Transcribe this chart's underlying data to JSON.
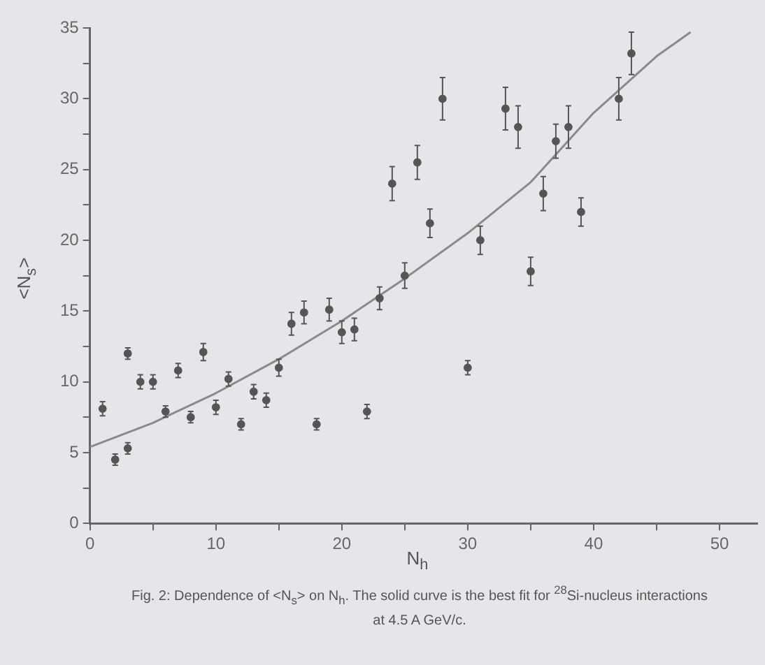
{
  "chart_data": {
    "type": "scatter",
    "xlabel": "N$_{h}$",
    "ylabel": "<N$_{s}$>",
    "annotations": [
      "Fig. 2: Dependence of <N$_{s}$> on N$_{h}$. The solid curve is the best fit for $^{28}$Si-nucleus interactions at 4.5 A GeV/c."
    ],
    "series": [
      {
        "color": "#555555",
        "marker": "circle",
        "x": [
          1,
          2,
          3,
          3,
          4,
          5,
          6,
          7,
          8,
          9,
          10,
          11,
          12,
          13,
          14,
          15,
          16,
          17,
          18,
          19,
          20,
          21,
          22,
          23,
          24,
          25,
          26,
          27,
          28,
          30,
          31,
          33,
          34,
          35,
          36,
          37,
          38,
          39,
          42,
          43
        ],
        "values": [
          8.1,
          4.5,
          5.3,
          12,
          10,
          10,
          7.9,
          10.8,
          7.5,
          12.1,
          8.2,
          10.2,
          7,
          9.3,
          8.7,
          11,
          14.1,
          14.9,
          7,
          15.1,
          13.5,
          13.7,
          7.9,
          15.9,
          24,
          17.5,
          25.5,
          21.2,
          30,
          11,
          20,
          29.3,
          28,
          17.8,
          23.3,
          27,
          28,
          22,
          30,
          33.2
        ],
        "errors": [
          0.5,
          0.4,
          0.4,
          0.4,
          0.5,
          0.5,
          0.4,
          0.5,
          0.4,
          0.6,
          0.5,
          0.5,
          0.4,
          0.5,
          0.5,
          0.6,
          0.8,
          0.8,
          0.4,
          0.8,
          0.8,
          0.8,
          0.5,
          0.8,
          1.2,
          0.9,
          1.2,
          1,
          1.5,
          0.5,
          1,
          1.5,
          1.5,
          1,
          1.2,
          1.2,
          1.5,
          1,
          1.5,
          1.5
        ]
      },
      {
        "type": "line",
        "color": "#8a8a8a",
        "marker": "none",
        "line_style": "solid",
        "x": [
          0,
          5,
          10,
          15,
          20,
          25,
          30,
          35,
          40,
          45,
          47.7
        ],
        "values": [
          5.4,
          7.1,
          9.2,
          11.6,
          14.3,
          17.3,
          20.5,
          24.1,
          29,
          33,
          34.7
        ]
      }
    ],
    "xlim": [
      0,
      53
    ],
    "xticks": [
      0,
      {
        "value": 5,
        "label": null
      },
      10,
      {
        "value": 15,
        "label": null
      },
      20,
      {
        "value": 25,
        "label": null
      },
      30,
      {
        "value": 35,
        "label": null
      },
      40,
      {
        "value": 45,
        "label": null
      },
      50
    ],
    "ylim": [
      0,
      35
    ],
    "yticks": [
      0,
      {
        "value": 2.5,
        "label": null
      },
      5,
      {
        "value": 7.5,
        "label": null
      },
      10,
      {
        "value": 12.5,
        "label": null
      },
      15,
      {
        "value": 17.5,
        "label": null
      },
      20,
      {
        "value": 22.5,
        "label": null
      },
      25,
      {
        "value": 27.5,
        "label": null
      },
      30,
      {
        "value": 32.5,
        "label": null
      },
      35
    ],
    "grid": false,
    "legend": false
  }
}
